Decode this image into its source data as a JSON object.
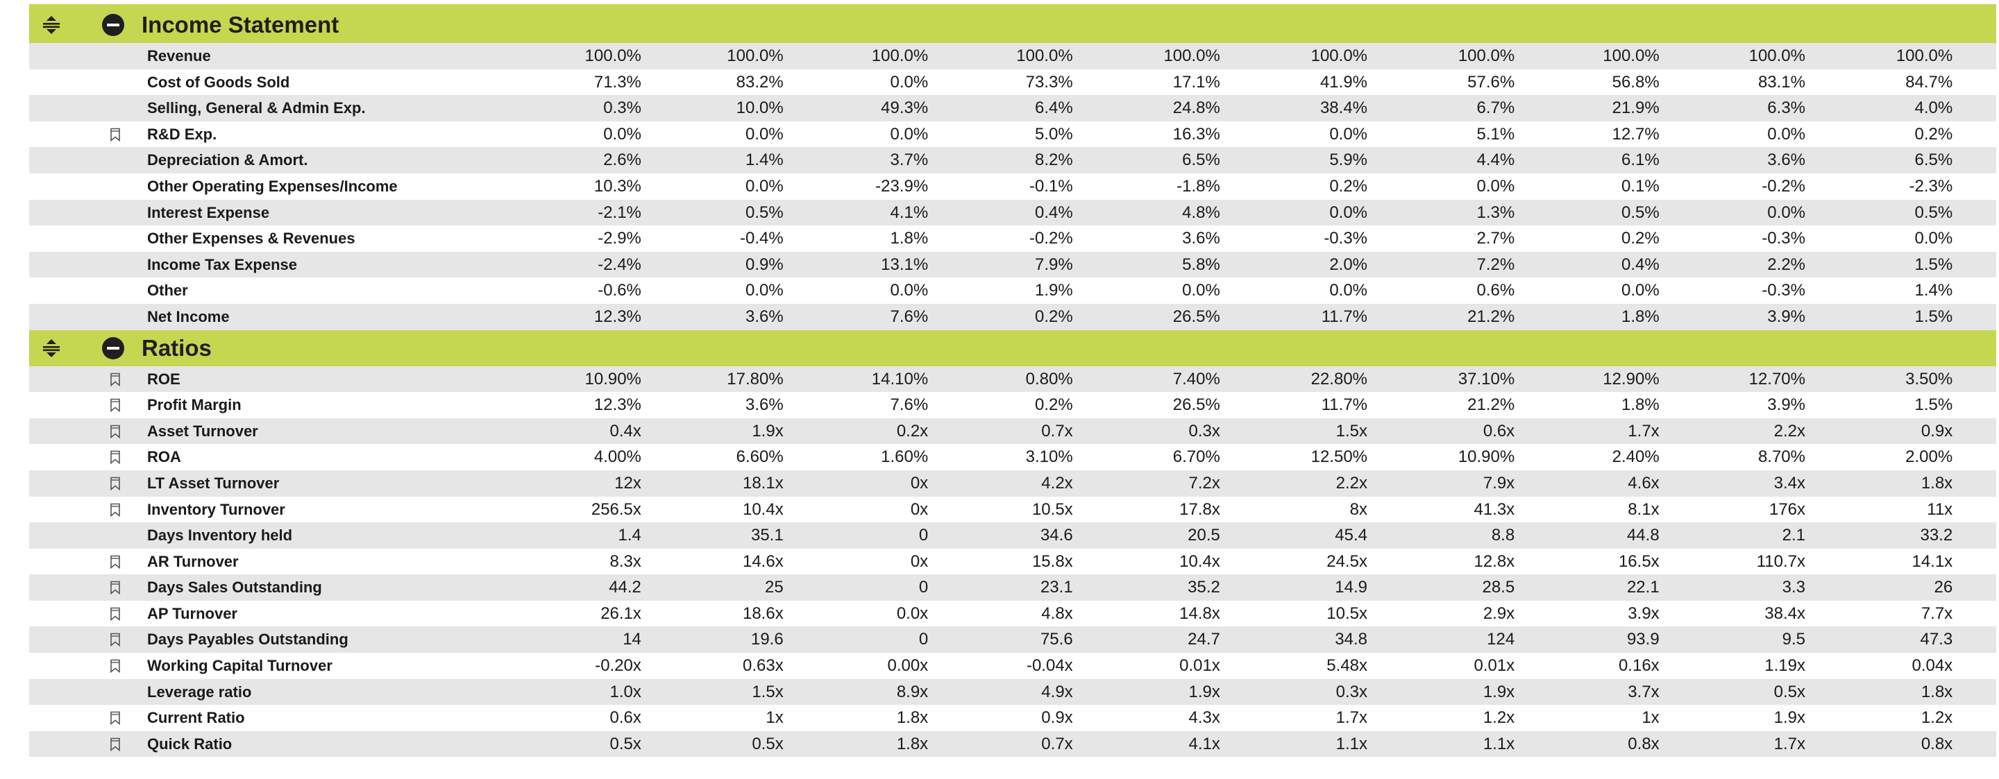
{
  "sections": [
    {
      "title": "Income Statement",
      "rows": [
        {
          "label": "Revenue",
          "bookmark": false,
          "values": [
            "100.0%",
            "100.0%",
            "100.0%",
            "100.0%",
            "100.0%",
            "100.0%",
            "100.0%",
            "100.0%",
            "100.0%",
            "100.0%"
          ]
        },
        {
          "label": "Cost of Goods Sold",
          "bookmark": false,
          "values": [
            "71.3%",
            "83.2%",
            "0.0%",
            "73.3%",
            "17.1%",
            "41.9%",
            "57.6%",
            "56.8%",
            "83.1%",
            "84.7%"
          ]
        },
        {
          "label": "Selling, General & Admin Exp.",
          "bookmark": false,
          "values": [
            "0.3%",
            "10.0%",
            "49.3%",
            "6.4%",
            "24.8%",
            "38.4%",
            "6.7%",
            "21.9%",
            "6.3%",
            "4.0%"
          ]
        },
        {
          "label": "R&D Exp.",
          "bookmark": true,
          "values": [
            "0.0%",
            "0.0%",
            "0.0%",
            "5.0%",
            "16.3%",
            "0.0%",
            "5.1%",
            "12.7%",
            "0.0%",
            "0.2%"
          ]
        },
        {
          "label": "Depreciation & Amort.",
          "bookmark": false,
          "values": [
            "2.6%",
            "1.4%",
            "3.7%",
            "8.2%",
            "6.5%",
            "5.9%",
            "4.4%",
            "6.1%",
            "3.6%",
            "6.5%"
          ]
        },
        {
          "label": "Other Operating Expenses/Income",
          "bookmark": false,
          "values": [
            "10.3%",
            "0.0%",
            "-23.9%",
            "-0.1%",
            "-1.8%",
            "0.2%",
            "0.0%",
            "0.1%",
            "-0.2%",
            "-2.3%"
          ]
        },
        {
          "label": "Interest Expense",
          "bookmark": false,
          "values": [
            "-2.1%",
            "0.5%",
            "4.1%",
            "0.4%",
            "4.8%",
            "0.0%",
            "1.3%",
            "0.5%",
            "0.0%",
            "0.5%"
          ]
        },
        {
          "label": "Other Expenses & Revenues",
          "bookmark": false,
          "values": [
            "-2.9%",
            "-0.4%",
            "1.8%",
            "-0.2%",
            "3.6%",
            "-0.3%",
            "2.7%",
            "0.2%",
            "-0.3%",
            "0.0%"
          ]
        },
        {
          "label": "Income Tax Expense",
          "bookmark": false,
          "values": [
            "-2.4%",
            "0.9%",
            "13.1%",
            "7.9%",
            "5.8%",
            "2.0%",
            "7.2%",
            "0.4%",
            "2.2%",
            "1.5%"
          ]
        },
        {
          "label": "Other",
          "bookmark": false,
          "values": [
            "-0.6%",
            "0.0%",
            "0.0%",
            "1.9%",
            "0.0%",
            "0.0%",
            "0.6%",
            "0.0%",
            "-0.3%",
            "1.4%"
          ]
        },
        {
          "label": "Net Income",
          "bookmark": false,
          "values": [
            "12.3%",
            "3.6%",
            "7.6%",
            "0.2%",
            "26.5%",
            "11.7%",
            "21.2%",
            "1.8%",
            "3.9%",
            "1.5%"
          ]
        }
      ]
    },
    {
      "title": "Ratios",
      "rows": [
        {
          "label": "ROE",
          "bookmark": true,
          "values": [
            "10.90%",
            "17.80%",
            "14.10%",
            "0.80%",
            "7.40%",
            "22.80%",
            "37.10%",
            "12.90%",
            "12.70%",
            "3.50%"
          ]
        },
        {
          "label": "Profit Margin",
          "bookmark": true,
          "values": [
            "12.3%",
            "3.6%",
            "7.6%",
            "0.2%",
            "26.5%",
            "11.7%",
            "21.2%",
            "1.8%",
            "3.9%",
            "1.5%"
          ]
        },
        {
          "label": "Asset Turnover",
          "bookmark": true,
          "values": [
            "0.4x",
            "1.9x",
            "0.2x",
            "0.7x",
            "0.3x",
            "1.5x",
            "0.6x",
            "1.7x",
            "2.2x",
            "0.9x"
          ]
        },
        {
          "label": "ROA",
          "bookmark": true,
          "values": [
            "4.00%",
            "6.60%",
            "1.60%",
            "3.10%",
            "6.70%",
            "12.50%",
            "10.90%",
            "2.40%",
            "8.70%",
            "2.00%"
          ]
        },
        {
          "label": "LT Asset Turnover",
          "bookmark": true,
          "values": [
            "12x",
            "18.1x",
            "0x",
            "4.2x",
            "7.2x",
            "2.2x",
            "7.9x",
            "4.6x",
            "3.4x",
            "1.8x"
          ]
        },
        {
          "label": "Inventory Turnover",
          "bookmark": true,
          "values": [
            "256.5x",
            "10.4x",
            "0x",
            "10.5x",
            "17.8x",
            "8x",
            "41.3x",
            "8.1x",
            "176x",
            "11x"
          ]
        },
        {
          "label": "Days Inventory held",
          "bookmark": false,
          "values": [
            "1.4",
            "35.1",
            "0",
            "34.6",
            "20.5",
            "45.4",
            "8.8",
            "44.8",
            "2.1",
            "33.2"
          ]
        },
        {
          "label": "AR Turnover",
          "bookmark": true,
          "values": [
            "8.3x",
            "14.6x",
            "0x",
            "15.8x",
            "10.4x",
            "24.5x",
            "12.8x",
            "16.5x",
            "110.7x",
            "14.1x"
          ]
        },
        {
          "label": "Days Sales Outstanding",
          "bookmark": true,
          "values": [
            "44.2",
            "25",
            "0",
            "23.1",
            "35.2",
            "14.9",
            "28.5",
            "22.1",
            "3.3",
            "26"
          ]
        },
        {
          "label": "AP Turnover",
          "bookmark": true,
          "values": [
            "26.1x",
            "18.6x",
            "0.0x",
            "4.8x",
            "14.8x",
            "10.5x",
            "2.9x",
            "3.9x",
            "38.4x",
            "7.7x"
          ]
        },
        {
          "label": "Days Payables Outstanding",
          "bookmark": true,
          "values": [
            "14",
            "19.6",
            "0",
            "75.6",
            "24.7",
            "34.8",
            "124",
            "93.9",
            "9.5",
            "47.3"
          ]
        },
        {
          "label": "Working Capital Turnover",
          "bookmark": true,
          "values": [
            "-0.20x",
            "0.63x",
            "0.00x",
            "-0.04x",
            "0.01x",
            "5.48x",
            "0.01x",
            "0.16x",
            "1.19x",
            "0.04x"
          ]
        },
        {
          "label": "Leverage ratio",
          "bookmark": false,
          "values": [
            "1.0x",
            "1.5x",
            "8.9x",
            "4.9x",
            "1.9x",
            "0.3x",
            "1.9x",
            "3.7x",
            "0.5x",
            "1.8x"
          ]
        },
        {
          "label": "Current Ratio",
          "bookmark": true,
          "values": [
            "0.6x",
            "1x",
            "1.8x",
            "0.9x",
            "4.3x",
            "1.7x",
            "1.2x",
            "1x",
            "1.9x",
            "1.2x"
          ]
        },
        {
          "label": "Quick Ratio",
          "bookmark": true,
          "values": [
            "0.5x",
            "0.5x",
            "1.8x",
            "0.7x",
            "4.1x",
            "1.1x",
            "1.1x",
            "0.8x",
            "1.7x",
            "0.8x"
          ]
        }
      ]
    }
  ],
  "icons": {
    "section_toggle": "expand-collapse-arrows-icon",
    "section_collapse": "minus-circle-icon",
    "row_bookmark": "bookmark-icon"
  },
  "colors": {
    "header_bg": "#c5d651",
    "row_shade": "#e6e6e6",
    "text": "#1a1a1a"
  }
}
